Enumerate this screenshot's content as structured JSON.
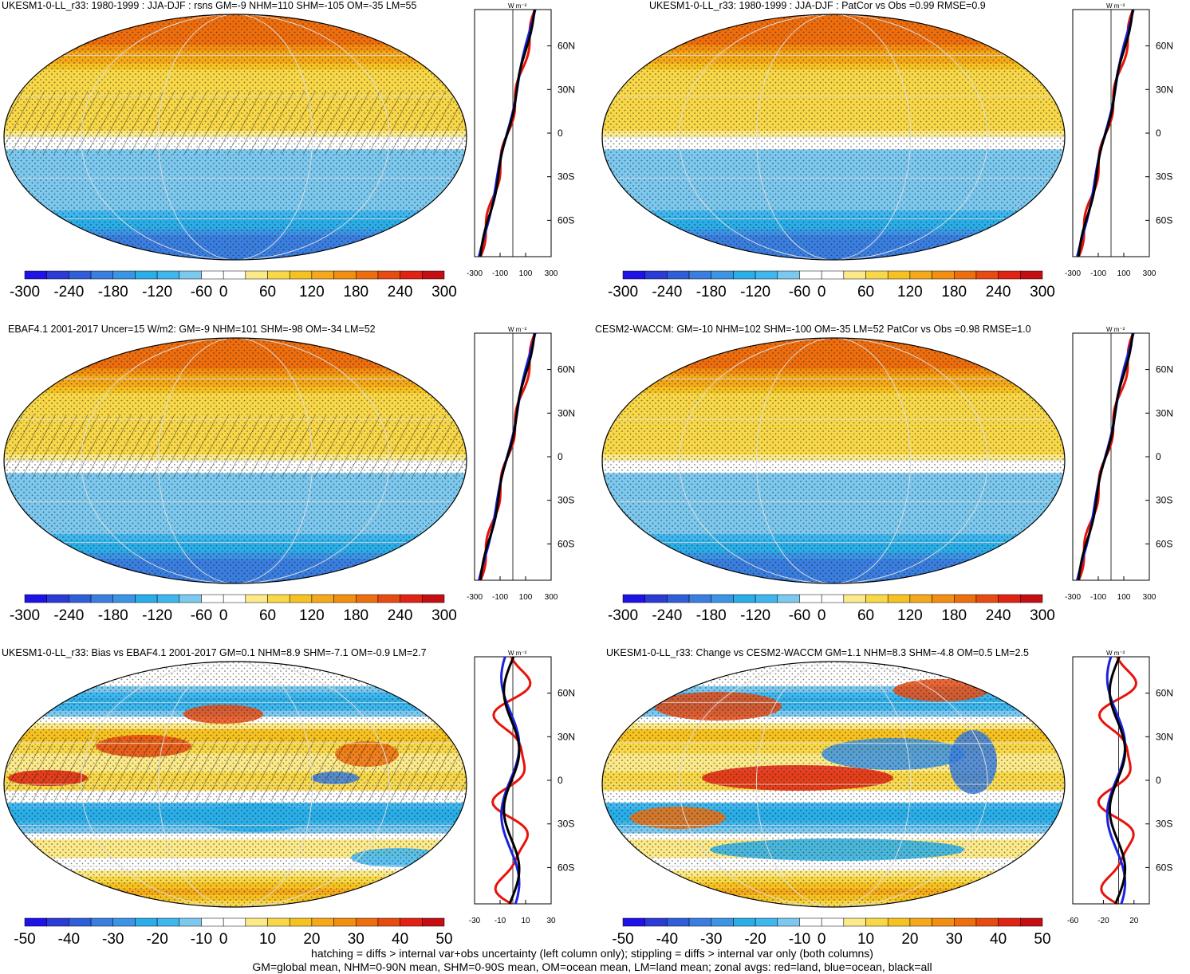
{
  "footer": {
    "line1": "hatching = diffs > internal var+obs uncertainty (left column only); stippling = diffs > internal var only (both columns)",
    "line2": "GM=global mean, NHM=0-90N mean, SHM=0-90S mean, OM=ocean mean, LM=land mean; zonal avgs: red=land, blue=ocean, black=all"
  },
  "colors": {
    "full_scale": [
      "#1f12e6",
      "#2a3bd6",
      "#2f5fd8",
      "#3a7ee0",
      "#3b94e4",
      "#2aaee8",
      "#3fb6ee",
      "#7cc8ee",
      "#ffffff",
      "#ffffff",
      "#fbe98a",
      "#f8d848",
      "#f6c222",
      "#f5a91a",
      "#f28e10",
      "#ee6e0e",
      "#e84b12",
      "#e02314",
      "#c40e12"
    ],
    "zonal_land": "#e8120c",
    "zonal_ocean": "#1a22e0",
    "zonal_all": "#000000"
  },
  "chart_data": [
    {
      "type": "heatmap",
      "title": "UKESM1-0-LL_r33: 1980-1999 : JJA-DJF : rsns GM=-9 NHM=110 SHM=-105 OM=-35 LM=55",
      "colorbar_ticks": [
        "-300",
        "-240",
        "-180",
        "-120",
        "-60",
        "0",
        "60",
        "120",
        "180",
        "240",
        "300"
      ],
      "zonal_axis": {
        "unit": "W m⁻²",
        "xticks": [
          "-300",
          "-100",
          "100",
          "300"
        ],
        "xlim": [
          -300,
          300
        ],
        "yticks": [
          "60N",
          "30N",
          "0",
          "30S",
          "60S"
        ]
      },
      "kind": "full",
      "hatch": true
    },
    {
      "type": "heatmap",
      "title": "UKESM1-0-LL_r33: 1980-1999 : JJA-DJF : PatCor vs Obs =0.99 RMSE=0.9",
      "colorbar_ticks": [
        "-300",
        "-240",
        "-180",
        "-120",
        "-60",
        "0",
        "60",
        "120",
        "180",
        "240",
        "300"
      ],
      "zonal_axis": {
        "unit": "W m⁻²",
        "xticks": [
          "-300",
          "-100",
          "100",
          "300"
        ],
        "xlim": [
          -300,
          300
        ],
        "yticks": [
          "60N",
          "30N",
          "0",
          "30S",
          "60S"
        ]
      },
      "kind": "full",
      "hatch": false
    },
    {
      "type": "heatmap",
      "title": "EBAF4.1 2001-2017 Uncer=15 W/m2: GM=-9 NHM=101 SHM=-98 OM=-34 LM=52",
      "colorbar_ticks": [
        "-300",
        "-240",
        "-180",
        "-120",
        "-60",
        "0",
        "60",
        "120",
        "180",
        "240",
        "300"
      ],
      "zonal_axis": {
        "unit": "W m⁻²",
        "xticks": [
          "-300",
          "-100",
          "100",
          "300"
        ],
        "xlim": [
          -300,
          300
        ],
        "yticks": [
          "60N",
          "30N",
          "0",
          "30S",
          "60S"
        ]
      },
      "kind": "full",
      "hatch": true
    },
    {
      "type": "heatmap",
      "title": "CESM2-WACCM: GM=-10 NHM=102 SHM=-100 OM=-35 LM=52 PatCor vs Obs =0.98 RMSE=1.0",
      "colorbar_ticks": [
        "-300",
        "-240",
        "-180",
        "-120",
        "-60",
        "0",
        "60",
        "120",
        "180",
        "240",
        "300"
      ],
      "zonal_axis": {
        "unit": "W m⁻²",
        "xticks": [
          "-300",
          "-100",
          "100",
          "300"
        ],
        "xlim": [
          -300,
          300
        ],
        "yticks": [
          "60N",
          "30N",
          "0",
          "30S",
          "60S"
        ]
      },
      "kind": "full",
      "hatch": false
    },
    {
      "type": "heatmap",
      "title": "UKESM1-0-LL_r33: Bias vs EBAF4.1 2001-2017 GM=0.1 NHM=8.9 SHM=-7.1 OM=-0.9 LM=2.7",
      "colorbar_ticks": [
        "-50",
        "-40",
        "-30",
        "-20",
        "-10",
        "0",
        "10",
        "20",
        "30",
        "40",
        "50"
      ],
      "zonal_axis": {
        "unit": "W m⁻²",
        "xticks": [
          "-30",
          "-10",
          "10",
          "30"
        ],
        "xlim": [
          -30,
          30
        ],
        "yticks": [
          "60N",
          "30N",
          "0",
          "30S",
          "60S"
        ]
      },
      "kind": "diff",
      "hatch": true
    },
    {
      "type": "heatmap",
      "title": "UKESM1-0-LL_r33: Change vs CESM2-WACCM GM=1.1 NHM=8.3 SHM=-4.8 OM=0.5 LM=2.5",
      "colorbar_ticks": [
        "-50",
        "-40",
        "-30",
        "-20",
        "-10",
        "0",
        "10",
        "20",
        "30",
        "40",
        "50"
      ],
      "zonal_axis": {
        "unit": "W m⁻²",
        "xticks": [
          "-60",
          "-20",
          "20"
        ],
        "xlim": [
          -60,
          40
        ],
        "yticks": [
          "60N",
          "30N",
          "0",
          "30S",
          "60S"
        ]
      },
      "kind": "diff",
      "hatch": false
    }
  ]
}
